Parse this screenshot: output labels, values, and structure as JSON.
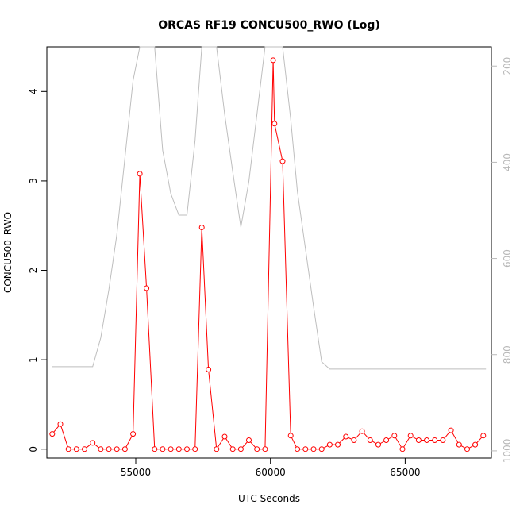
{
  "chart_data": {
    "type": "line",
    "title": "ORCAS RF19 CONCU500_RWO (Log)",
    "xlabel": "UTC Seconds",
    "ylabel": "CONCU500_RWO",
    "xlim": [
      51700,
      68200
    ],
    "ylim": [
      -0.1,
      4.5
    ],
    "x_ticks": [
      55000,
      60000,
      65000
    ],
    "x_tick_labels": [
      "55000",
      "60000",
      "65000"
    ],
    "y_ticks": [
      0,
      1,
      2,
      3,
      4
    ],
    "y_tick_labels": [
      "0",
      "1",
      "2",
      "3",
      "4"
    ],
    "y2_lim": [
      1015,
      160
    ],
    "y2_ticks": [
      200,
      400,
      600,
      800,
      1000
    ],
    "y2_tick_labels": [
      "200",
      "400",
      "600",
      "800",
      "1000"
    ],
    "grid": false,
    "colors": {
      "primary": "#ff0000",
      "secondary": "#bebebe"
    },
    "series": [
      {
        "marker": "open-circle",
        "color": "#ff0000",
        "x": [
          51900,
          52200,
          52500,
          52800,
          53100,
          53400,
          53700,
          54000,
          54300,
          54600,
          54900,
          55150,
          55400,
          55700,
          56000,
          56300,
          56600,
          56900,
          57200,
          57450,
          57700,
          58000,
          58300,
          58600,
          58900,
          59200,
          59500,
          59800,
          60100,
          60150,
          60450,
          60750,
          61000,
          61300,
          61600,
          61900,
          62200,
          62500,
          62800,
          63100,
          63400,
          63700,
          64000,
          64300,
          64600,
          64900,
          65200,
          65500,
          65800,
          66100,
          66400,
          66700,
          67000,
          67300,
          67600,
          67900
        ],
        "values": [
          0.17,
          0.28,
          0.0,
          0.0,
          0.0,
          0.07,
          0.0,
          0.0,
          0.0,
          0.0,
          0.17,
          3.08,
          1.8,
          0.0,
          0.0,
          0.0,
          0.0,
          0.0,
          0.0,
          2.48,
          0.89,
          0.0,
          0.14,
          0.0,
          0.0,
          0.1,
          0.0,
          0.0,
          4.35,
          3.64,
          3.22,
          0.15,
          0.0,
          0.0,
          0.0,
          0.0,
          0.05,
          0.05,
          0.14,
          0.1,
          0.2,
          0.1,
          0.05,
          0.1,
          0.15,
          0.0,
          0.15,
          0.1,
          0.1,
          0.1,
          0.1,
          0.21,
          0.05,
          0.0,
          0.05,
          0.15
        ]
      },
      {
        "axis": "right",
        "color": "#bebebe",
        "x": [
          51900,
          53400,
          53700,
          54000,
          54300,
          54600,
          54900,
          55150,
          55700,
          56000,
          56300,
          56600,
          56900,
          57200,
          57450,
          58000,
          58300,
          58600,
          58900,
          59200,
          59500,
          59800,
          60100,
          60450,
          60750,
          61000,
          61300,
          61600,
          61900,
          62200,
          68000
        ],
        "values": [
          825,
          825,
          765,
          665,
          550,
          390,
          230,
          160,
          160,
          375,
          465,
          510,
          510,
          355,
          160,
          160,
          300,
          420,
          535,
          440,
          300,
          160,
          160,
          160,
          310,
          460,
          580,
          700,
          815,
          830,
          830
        ]
      }
    ]
  }
}
